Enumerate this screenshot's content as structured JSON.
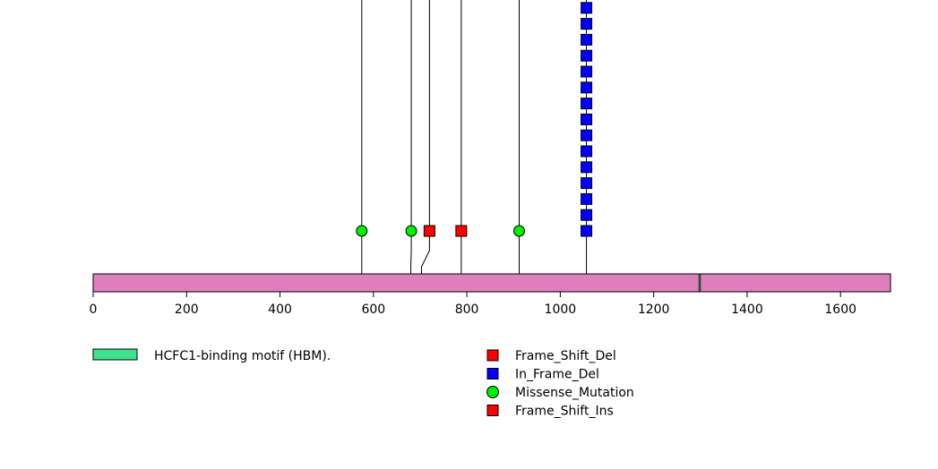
{
  "chart_data": {
    "type": "lollipop",
    "protein_length": 1707,
    "xlim": [
      0,
      1707
    ],
    "x_ticks": [
      0,
      200,
      400,
      600,
      800,
      1000,
      1200,
      1400,
      1600
    ],
    "x_tick_labels": [
      "0",
      "200",
      "400",
      "600",
      "800",
      "1000",
      "1200",
      "1400",
      "1600"
    ],
    "backbone_color": "#e07fbe",
    "domains": [
      {
        "name": "HCFC1-binding motif (HBM).",
        "start": 1297,
        "end": 1300,
        "color": "#3ee28a"
      }
    ],
    "mutation_types": [
      {
        "name": "Frame_Shift_Del",
        "color": "#ff0000",
        "marker": "square"
      },
      {
        "name": "In_Frame_Del",
        "color": "#0000ff",
        "marker": "square"
      },
      {
        "name": "Missense_Mutation",
        "color": "#00ee00",
        "marker": "circle"
      },
      {
        "name": "Frame_Shift_Ins",
        "color": "#ff0000",
        "marker": "square"
      }
    ],
    "mutations": [
      {
        "position": 575,
        "type": "Missense_Mutation",
        "count": 1,
        "stem_continues_above": true
      },
      {
        "position": 681,
        "type": "Missense_Mutation",
        "count": 1,
        "stem_continues_above": true,
        "label_position": 680
      },
      {
        "position": 720,
        "type": "Frame_Shift_Del",
        "count": 1,
        "stem_continues_above": true,
        "label_position": 703
      },
      {
        "position": 788,
        "type": "Frame_Shift_Ins",
        "count": 1,
        "stem_continues_above": true
      },
      {
        "position": 912,
        "type": "Missense_Mutation",
        "count": 1,
        "stem_continues_above": true
      },
      {
        "position": 1056,
        "type": "In_Frame_Del",
        "count": 15,
        "stem_continues_above": true
      }
    ]
  }
}
